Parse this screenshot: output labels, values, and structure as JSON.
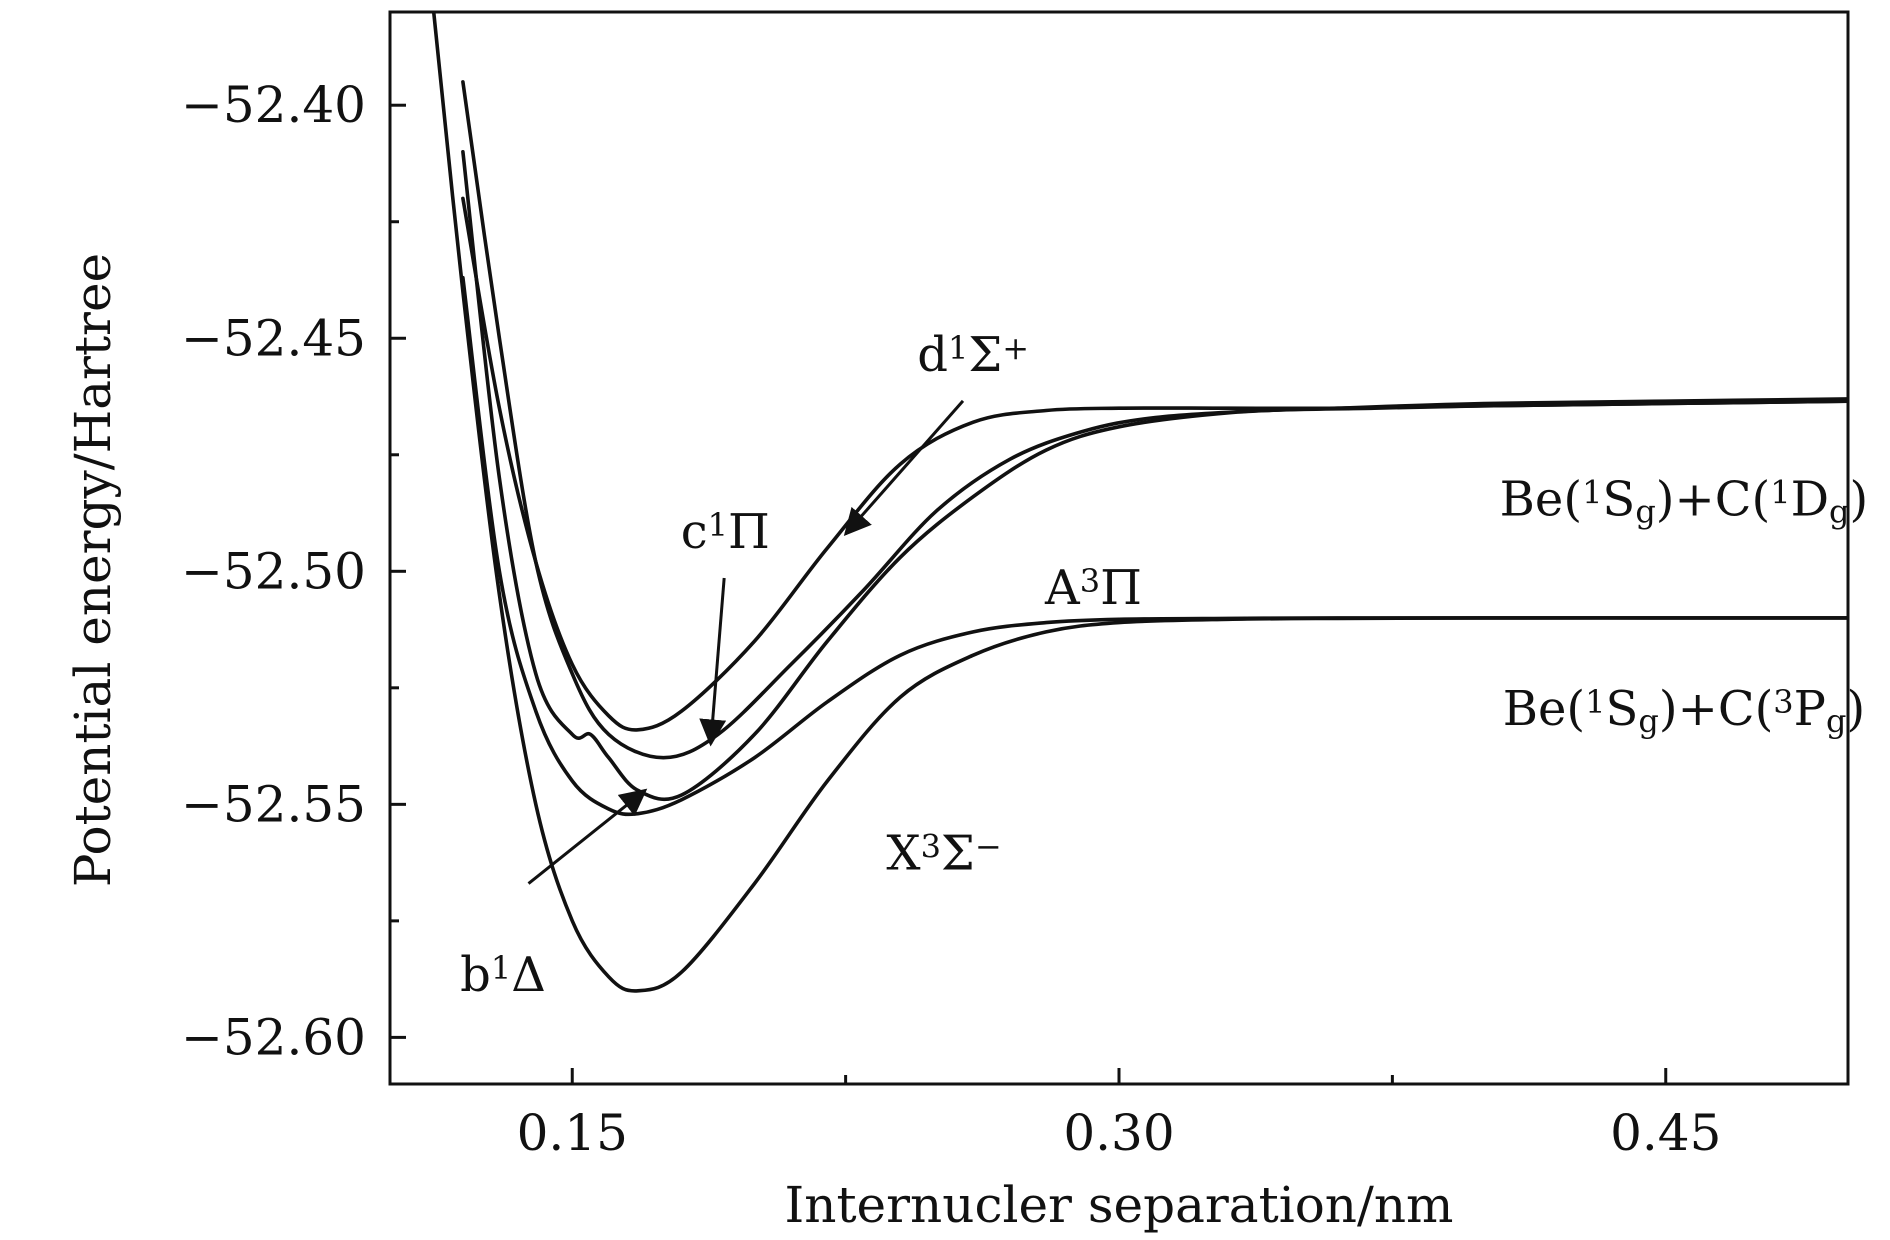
{
  "chart_data": {
    "type": "line",
    "title": "",
    "xlabel": "Internucler separation/nm",
    "ylabel": "Potential energy/Hartree",
    "xlim": [
      0.1,
      0.5
    ],
    "ylim": [
      -52.61,
      -52.38
    ],
    "x_ticks": [
      0.15,
      0.3,
      0.45
    ],
    "x_tick_labels": [
      "0.15",
      "0.30",
      "0.45"
    ],
    "x_minor_ticks": [
      0.225,
      0.375
    ],
    "y_ticks": [
      -52.4,
      -52.45,
      -52.5,
      -52.55,
      -52.6
    ],
    "y_tick_labels": [
      "−52.40",
      "−52.45",
      "−52.50",
      "−52.55",
      "−52.60"
    ],
    "y_minor_ticks": [
      -52.425,
      -52.475,
      -52.525,
      -52.575
    ],
    "grid": false,
    "legend": "none",
    "series": [
      {
        "name": "X3Σ−",
        "x": [
          0.112,
          0.12,
          0.13,
          0.14,
          0.15,
          0.16,
          0.168,
          0.18,
          0.2,
          0.22,
          0.24,
          0.26,
          0.28,
          0.3,
          0.33,
          0.36,
          0.4,
          0.45,
          0.5
        ],
        "y": [
          -52.38,
          -52.44,
          -52.505,
          -52.55,
          -52.575,
          -52.587,
          -52.59,
          -52.586,
          -52.567,
          -52.545,
          -52.527,
          -52.518,
          -52.513,
          -52.511,
          -52.5103,
          -52.5101,
          -52.51,
          -52.51,
          -52.51
        ]
      },
      {
        "name": "A3Π",
        "x": [
          0.12,
          0.13,
          0.14,
          0.15,
          0.16,
          0.168,
          0.18,
          0.2,
          0.22,
          0.24,
          0.26,
          0.28,
          0.3,
          0.33,
          0.36,
          0.4,
          0.45,
          0.5
        ],
        "y": [
          -52.437,
          -52.5,
          -52.53,
          -52.545,
          -52.551,
          -52.552,
          -52.549,
          -52.54,
          -52.528,
          -52.518,
          -52.513,
          -52.511,
          -52.5103,
          -52.5101,
          -52.51,
          -52.51,
          -52.51,
          -52.51
        ]
      },
      {
        "name": "b1Δ",
        "x": [
          0.12,
          0.13,
          0.14,
          0.15,
          0.155,
          0.16,
          0.168,
          0.18,
          0.2,
          0.22,
          0.24,
          0.26,
          0.28,
          0.3,
          0.33,
          0.36,
          0.4,
          0.45,
          0.5
        ],
        "y": [
          -52.41,
          -52.48,
          -52.522,
          -52.535,
          -52.535,
          -52.54,
          -52.547,
          -52.548,
          -52.535,
          -52.515,
          -52.497,
          -52.484,
          -52.474,
          -52.469,
          -52.466,
          -52.465,
          -52.464,
          -52.4635,
          -52.463
        ]
      },
      {
        "name": "c1Π",
        "x": [
          0.12,
          0.13,
          0.14,
          0.15,
          0.16,
          0.175,
          0.19,
          0.21,
          0.23,
          0.25,
          0.27,
          0.29,
          0.31,
          0.34,
          0.37,
          0.4,
          0.45,
          0.5
        ],
        "y": [
          -52.395,
          -52.45,
          -52.498,
          -52.522,
          -52.535,
          -52.54,
          -52.535,
          -52.52,
          -52.504,
          -52.487,
          -52.476,
          -52.47,
          -52.467,
          -52.4655,
          -52.465,
          -52.4645,
          -52.464,
          -52.4635
        ]
      },
      {
        "name": "d1Σ+",
        "x": [
          0.12,
          0.13,
          0.14,
          0.15,
          0.16,
          0.168,
          0.18,
          0.2,
          0.22,
          0.24,
          0.26,
          0.28,
          0.3,
          0.33,
          0.36,
          0.4,
          0.45,
          0.5
        ],
        "y": [
          -52.42,
          -52.465,
          -52.498,
          -52.52,
          -52.531,
          -52.534,
          -52.53,
          -52.515,
          -52.495,
          -52.477,
          -52.468,
          -52.4655,
          -52.465,
          -52.465,
          -52.465,
          -52.4645,
          -52.464,
          -52.4635
        ]
      }
    ],
    "annotations": [
      {
        "name": "d1Σ+",
        "text_base": "d",
        "sup1": "1",
        "text_mid": "Σ",
        "sup2": "+",
        "x": 0.26,
        "y": -52.457,
        "arrow_to": [
          0.225,
          -52.492
        ]
      },
      {
        "name": "c1Π",
        "text_base": "c",
        "sup1": "1",
        "text_mid": "Π",
        "x": 0.192,
        "y": -52.495,
        "arrow_to": [
          0.188,
          -52.537
        ]
      },
      {
        "name": "A3Π",
        "text_base": "A",
        "sup1": "3",
        "text_mid": "Π",
        "x": 0.293,
        "y": -52.507
      },
      {
        "name": "X3Σ−",
        "text_base": "X",
        "sup1": "3",
        "text_mid": "Σ",
        "sup2": "−",
        "x": 0.252,
        "y": -52.564
      },
      {
        "name": "b1Δ",
        "text_base": "b",
        "sup1": "1",
        "text_mid": "Δ",
        "x": 0.131,
        "y": -52.59,
        "arrow_from": [
          0.138,
          -52.567
        ],
        "arrow_to": [
          0.17,
          -52.547
        ]
      }
    ],
    "asymptote_labels": [
      {
        "name": "upper",
        "prefix": "Be(",
        "sup_a": "1",
        "mid_a": "S",
        "sub_a": "g",
        "join": ")+C(",
        "sup_b": "1",
        "mid_b": "D",
        "sub_b": "g",
        "suffix": ")",
        "x": 0.455,
        "y": -52.488
      },
      {
        "name": "lower",
        "prefix": "Be(",
        "sup_a": "1",
        "mid_a": "S",
        "sub_a": "g",
        "join": ")+C(",
        "sup_b": "3",
        "mid_b": "P",
        "sub_b": "g",
        "suffix": ")",
        "x": 0.455,
        "y": -52.533
      }
    ]
  }
}
